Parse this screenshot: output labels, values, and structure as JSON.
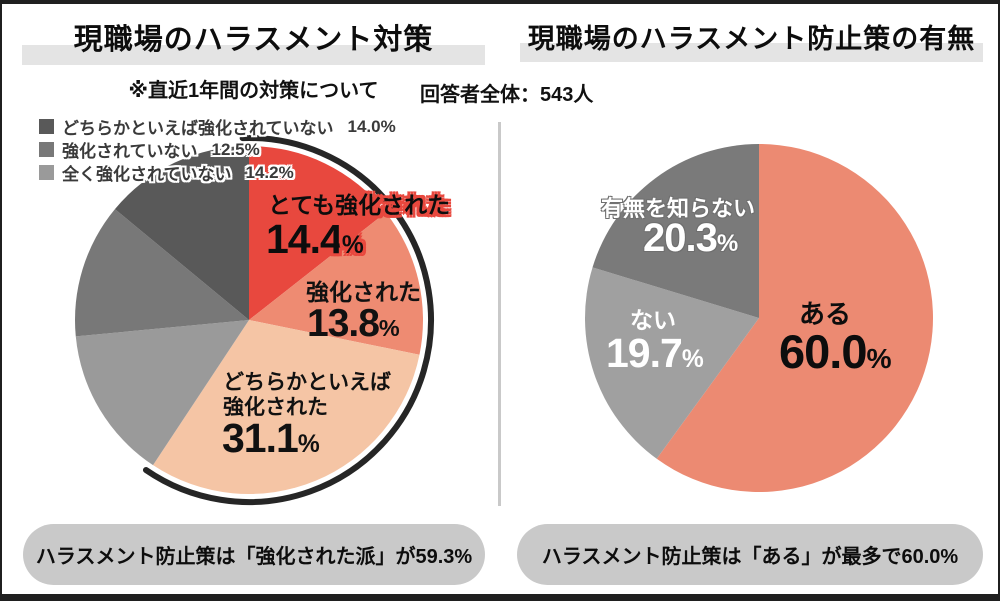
{
  "symbols": {
    "percent": "%"
  },
  "left_panel": {
    "title": "現職場のハラスメント対策",
    "subtitle": "※直近1年間の対策について",
    "legend": [
      {
        "label": "どちらかといえば強化されていない",
        "pct": "14.0%",
        "color": "#595959"
      },
      {
        "label": "強化されていない",
        "pct": "12.5%",
        "color": "#787878"
      },
      {
        "label": "全く強化されていない",
        "pct": "14.2%",
        "color": "#9A9A9A"
      }
    ],
    "banner": "ハラスメント防止策は「強化された派」が59.3%"
  },
  "right_panel": {
    "title": "現職場のハラスメント防止策の有無",
    "respondents": "回答者全体：543人",
    "banner": "ハラスメント防止策は「ある」が最多で60.0%"
  },
  "chart_data": [
    {
      "type": "pie",
      "title": "現職場のハラスメント対策",
      "note": "※直近1年間の対策について",
      "start_angle": "top",
      "direction": "clockwise",
      "slices": [
        {
          "label": "とても強化された",
          "value": 14.4,
          "display": "14.4",
          "color": "#E8483E"
        },
        {
          "label": "強化された",
          "value": 13.8,
          "display": "13.8",
          "color": "#EE8B72"
        },
        {
          "label": "どちらかといえば強化された",
          "label_line1": "どちらかといえば",
          "label_line2": "強化された",
          "value": 31.1,
          "display": "31.1",
          "color": "#F5C5A5"
        },
        {
          "label": "全く強化されていない",
          "value": 14.2,
          "display": "14.2",
          "color": "#9A9A9A"
        },
        {
          "label": "強化されていない",
          "value": 12.5,
          "display": "12.5",
          "color": "#787878"
        },
        {
          "label": "どちらかといえば強化されていない",
          "value": 14.0,
          "display": "14.0",
          "color": "#595959"
        }
      ],
      "highlight_arc": {
        "covers_pct": 59.3,
        "meaning": "強化された派",
        "color": "#262626"
      }
    },
    {
      "type": "pie",
      "title": "現職場のハラスメント防止策の有無",
      "start_angle": "top",
      "direction": "clockwise",
      "slices": [
        {
          "label": "ある",
          "value": 60.0,
          "display": "60.0",
          "color": "#EC8A72"
        },
        {
          "label": "ない",
          "value": 19.7,
          "display": "19.7",
          "color": "#A0A0A0"
        },
        {
          "label": "有無を知らない",
          "value": 20.3,
          "display": "20.3",
          "color": "#7A7A7A"
        }
      ]
    }
  ]
}
